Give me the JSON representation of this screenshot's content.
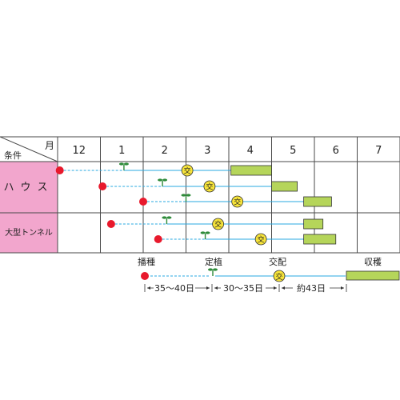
{
  "header": {
    "corner_top": "月",
    "corner_bottom": "条件",
    "months": [
      "12",
      "1",
      "2",
      "3",
      "4",
      "5",
      "6",
      "7"
    ]
  },
  "rows": [
    {
      "label": "ハウス",
      "schedules": [
        {
          "sow": 12.05,
          "plant": 1.55,
          "cross": 3.03,
          "harvest": [
            4.05,
            5.0
          ]
        },
        {
          "sow": 1.05,
          "plant": 2.45,
          "cross": 3.55,
          "harvest": [
            5.0,
            5.6
          ]
        },
        {
          "sow": 2.0,
          "plant": 3.0,
          "cross": 4.2,
          "harvest": [
            5.75,
            6.4
          ]
        }
      ]
    },
    {
      "label": "大型トンネル",
      "schedules": [
        {
          "sow": 1.25,
          "plant": 2.55,
          "cross": 3.75,
          "harvest": [
            5.75,
            6.2
          ]
        },
        {
          "sow": 2.35,
          "plant": 3.45,
          "cross": 4.75,
          "harvest": [
            5.75,
            6.5
          ]
        }
      ]
    }
  ],
  "legend": {
    "sowing": "播種",
    "planting": "定植",
    "pollination": "交配",
    "harvest": "収穫",
    "interval1": "35～40日",
    "interval2": "30～35日",
    "interval3": "約43日"
  },
  "symbols": {
    "cross_mark": "交"
  },
  "colors": {
    "grid": "#4a4a4a",
    "header_fill": "#ffffff",
    "label_fill": "#f2a6cd",
    "sow_dot": "#e8192c",
    "sow_line": "#29a9e0",
    "grow_line": "#29a9e0",
    "sprout": "#2e8b3a",
    "cross_fill": "#f7e43a",
    "harvest_fill": "#b5d55a"
  }
}
